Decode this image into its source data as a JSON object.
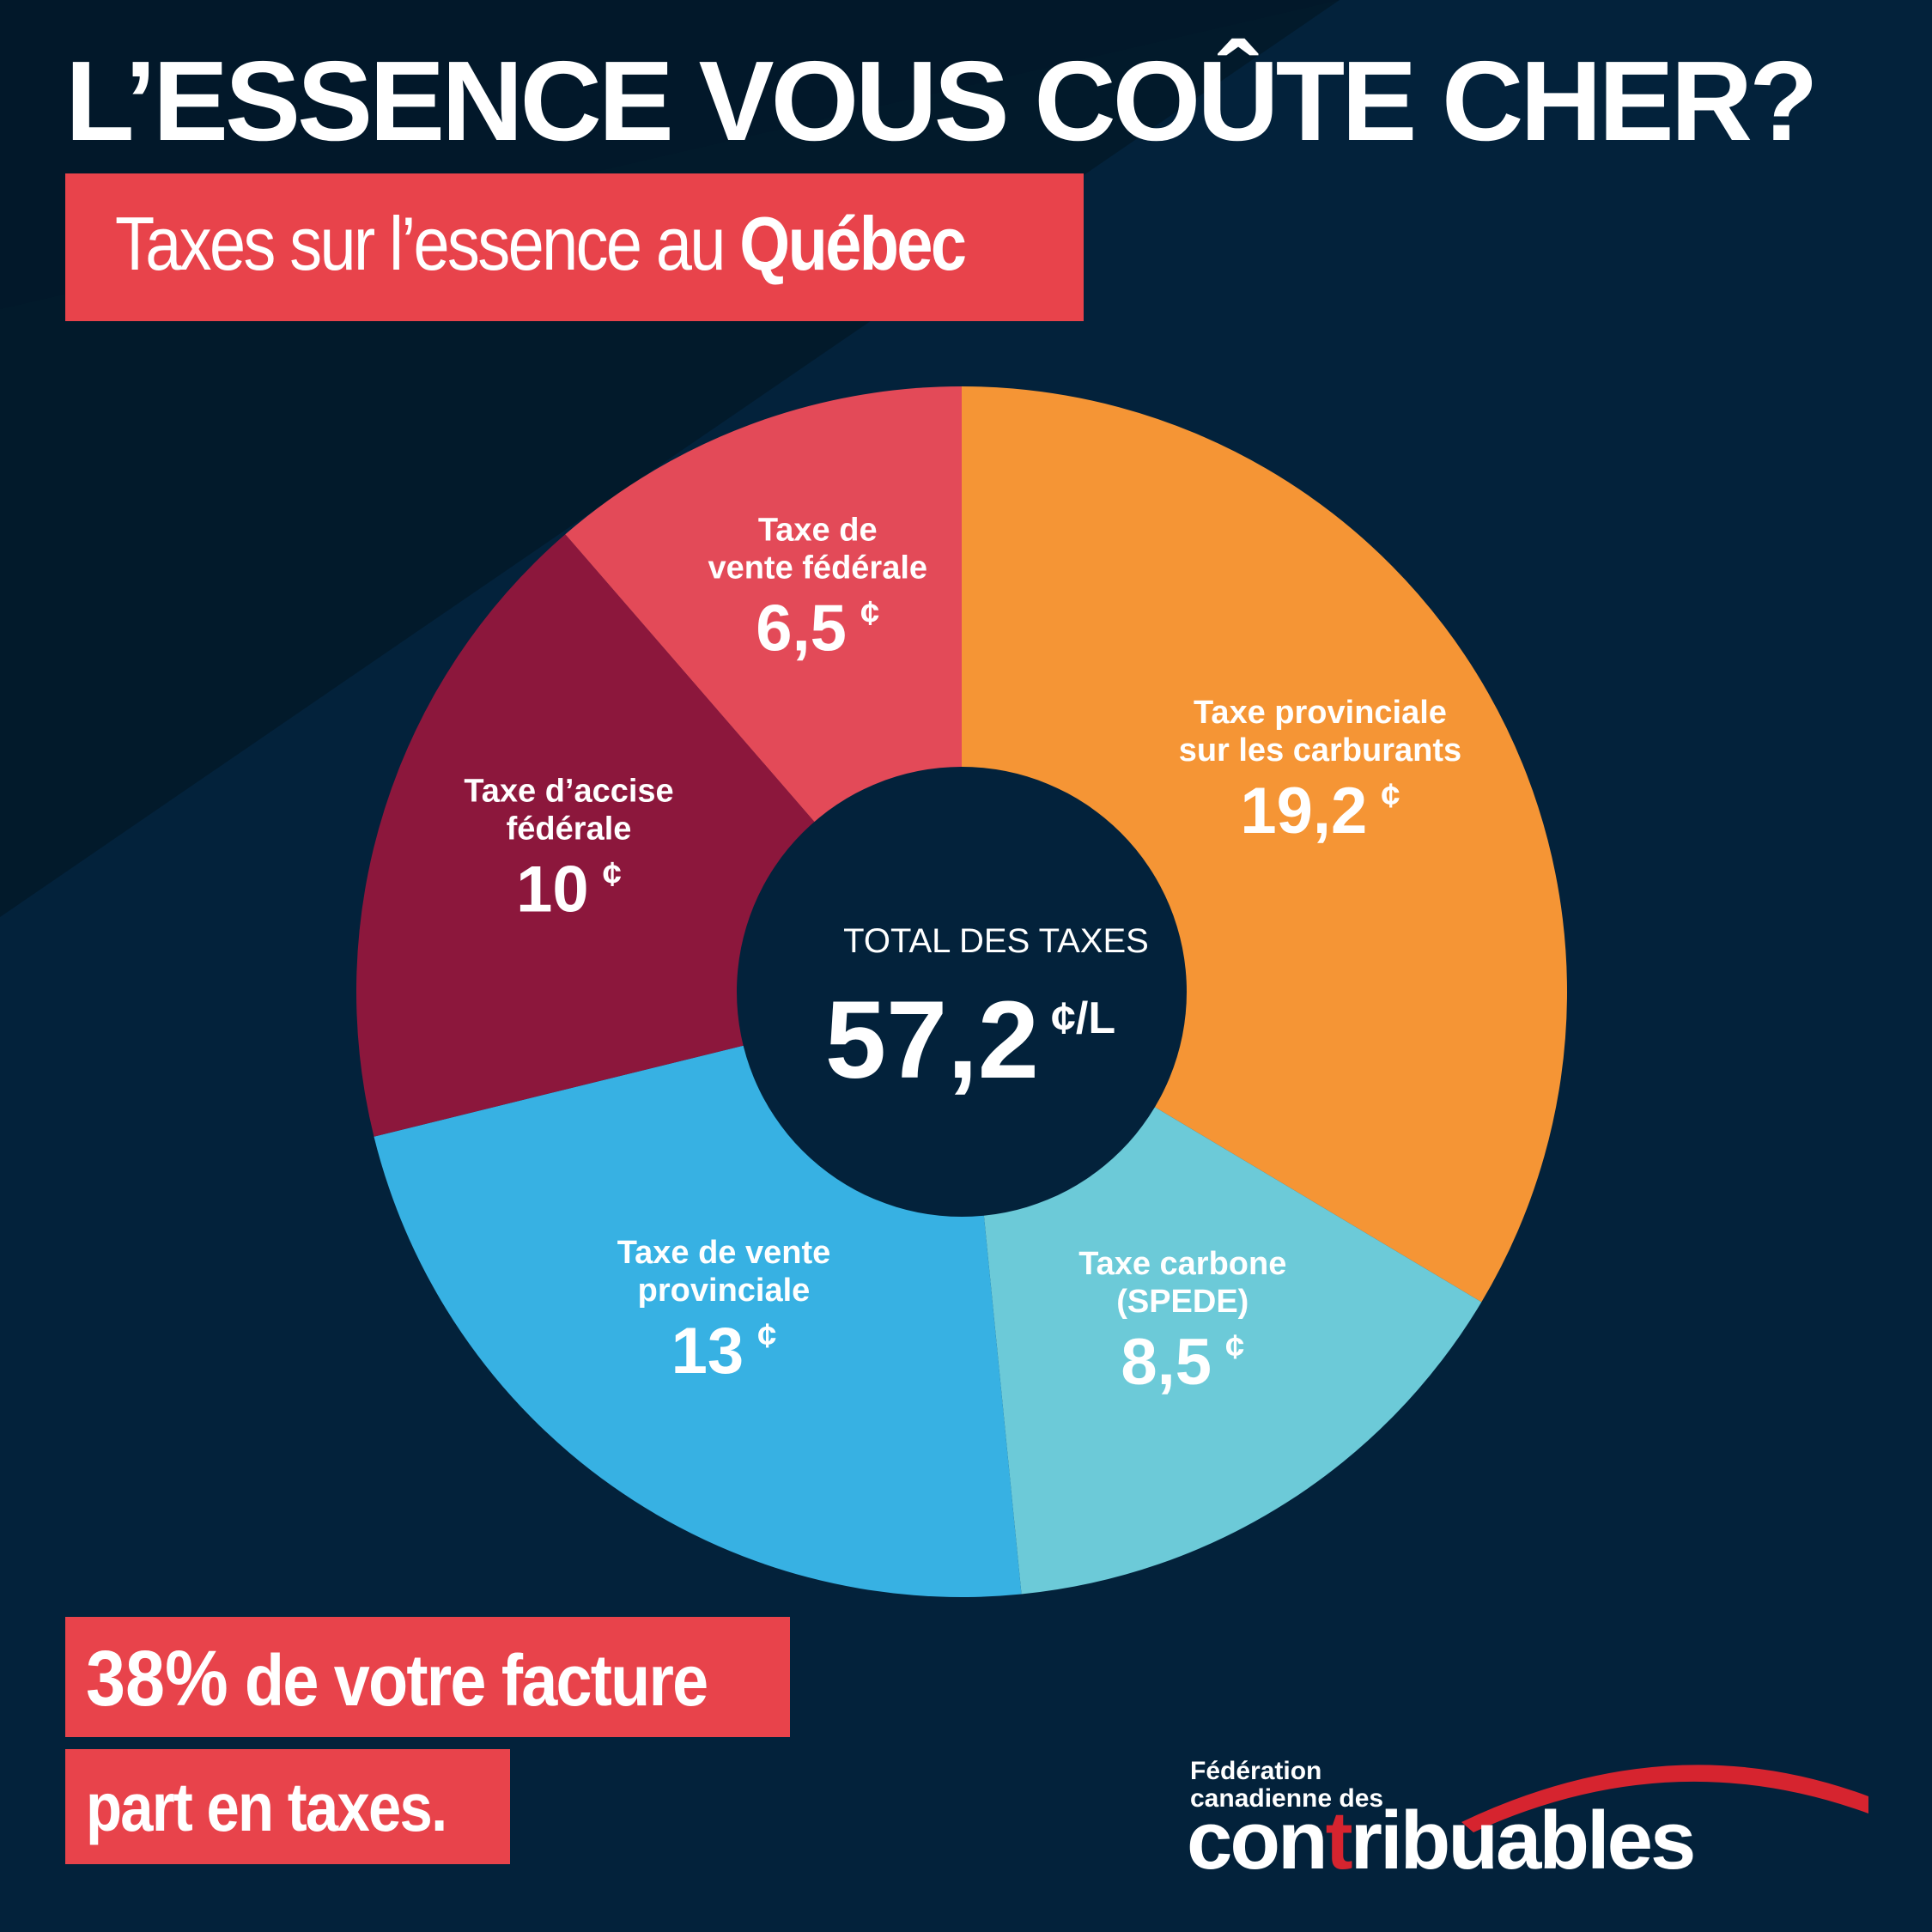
{
  "header": {
    "title": "L’ESSENCE VOUS COÛTE CHER?",
    "subtitle_prefix": "Taxes sur l’essence au",
    "subtitle_bold": "Québec"
  },
  "colors": {
    "background": "#03223b",
    "background_dark": "#021a2b",
    "accent_red": "#e8434b",
    "logo_red": "#d6242f"
  },
  "chart_data": {
    "type": "pie",
    "donut": true,
    "title": "Taxes sur l’essence au Québec",
    "unit": "¢",
    "slices": [
      {
        "line1": "Taxe provinciale",
        "line2": "sur les carburants",
        "value": 19.2,
        "label": "19,2",
        "color": "#f59535"
      },
      {
        "line1": "Taxe carbone",
        "line2": "(SPEDE)",
        "value": 8.5,
        "label": "8,5",
        "color": "#6ccad8"
      },
      {
        "line1": "Taxe de vente",
        "line2": "provinciale",
        "value": 13,
        "label": "13",
        "color": "#37b1e3"
      },
      {
        "line1": "Taxe d’accise",
        "line2": "fédérale",
        "value": 10,
        "label": "10",
        "color": "#8c173c"
      },
      {
        "line1": "Taxe de",
        "line2": "vente fédérale",
        "value": 6.5,
        "label": "6,5",
        "color": "#e34a58"
      }
    ],
    "center": {
      "title": "TOTAL DES TAXES",
      "value": "57,2",
      "unit_symbol": "¢",
      "unit_suffix": "/L"
    }
  },
  "footer": {
    "note_pct": "38%",
    "note_line1": "de votre facture",
    "note_line2": "part en taxes."
  },
  "logo": {
    "line1": "Fédération",
    "line2": "canadienne des",
    "word_part1": "con",
    "word_accent": "t",
    "word_part2": "ribuables"
  }
}
